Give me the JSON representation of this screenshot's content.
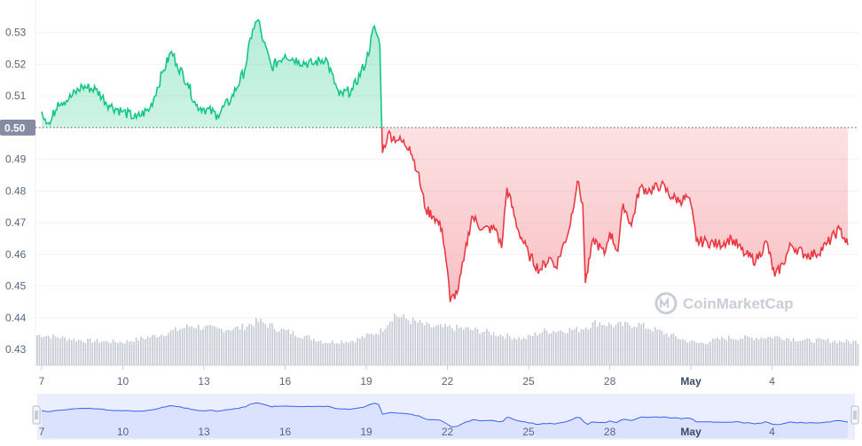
{
  "chart_data": {
    "type": "area",
    "baseline": 0.5,
    "baseline_label": "0.50",
    "ylim": [
      0.425,
      0.538
    ],
    "yticks": [
      "0.53",
      "0.52",
      "0.51",
      "0.50",
      "0.49",
      "0.48",
      "0.47",
      "0.46",
      "0.45",
      "0.44",
      "0.43"
    ],
    "xticks": [
      "7",
      "10",
      "13",
      "16",
      "19",
      "22",
      "25",
      "28",
      "May",
      "4"
    ],
    "x_day_range": [
      7,
      37
    ],
    "price_anchors": [
      [
        7.0,
        0.505
      ],
      [
        7.3,
        0.501
      ],
      [
        7.6,
        0.508
      ],
      [
        8.0,
        0.509
      ],
      [
        8.5,
        0.513
      ],
      [
        9.0,
        0.512
      ],
      [
        9.5,
        0.507
      ],
      [
        10.0,
        0.505
      ],
      [
        10.5,
        0.503
      ],
      [
        11.0,
        0.506
      ],
      [
        11.5,
        0.518
      ],
      [
        11.8,
        0.524
      ],
      [
        12.0,
        0.52
      ],
      [
        12.4,
        0.514
      ],
      [
        12.7,
        0.507
      ],
      [
        13.0,
        0.506
      ],
      [
        13.5,
        0.504
      ],
      [
        14.0,
        0.509
      ],
      [
        14.5,
        0.518
      ],
      [
        14.8,
        0.531
      ],
      [
        15.0,
        0.534
      ],
      [
        15.2,
        0.527
      ],
      [
        15.5,
        0.519
      ],
      [
        16.0,
        0.523
      ],
      [
        16.5,
        0.521
      ],
      [
        17.0,
        0.52
      ],
      [
        17.5,
        0.522
      ],
      [
        18.0,
        0.51
      ],
      [
        18.5,
        0.512
      ],
      [
        19.0,
        0.521
      ],
      [
        19.3,
        0.532
      ],
      [
        19.5,
        0.526
      ],
      [
        19.6,
        0.492
      ],
      [
        19.8,
        0.498
      ],
      [
        20.2,
        0.496
      ],
      [
        20.6,
        0.494
      ],
      [
        20.9,
        0.486
      ],
      [
        21.2,
        0.474
      ],
      [
        21.5,
        0.472
      ],
      [
        21.8,
        0.468
      ],
      [
        22.0,
        0.455
      ],
      [
        22.1,
        0.445
      ],
      [
        22.4,
        0.449
      ],
      [
        22.6,
        0.458
      ],
      [
        22.9,
        0.472
      ],
      [
        23.3,
        0.468
      ],
      [
        23.8,
        0.468
      ],
      [
        24.0,
        0.462
      ],
      [
        24.2,
        0.481
      ],
      [
        24.6,
        0.468
      ],
      [
        25.0,
        0.46
      ],
      [
        25.4,
        0.455
      ],
      [
        25.8,
        0.459
      ],
      [
        26.0,
        0.456
      ],
      [
        26.5,
        0.468
      ],
      [
        26.8,
        0.483
      ],
      [
        27.0,
        0.476
      ],
      [
        27.1,
        0.451
      ],
      [
        27.4,
        0.465
      ],
      [
        27.8,
        0.46
      ],
      [
        28.0,
        0.467
      ],
      [
        28.3,
        0.461
      ],
      [
        28.5,
        0.476
      ],
      [
        28.8,
        0.469
      ],
      [
        29.1,
        0.481
      ],
      [
        29.5,
        0.48
      ],
      [
        29.9,
        0.482
      ],
      [
        30.3,
        0.478
      ],
      [
        30.6,
        0.477
      ],
      [
        30.9,
        0.478
      ],
      [
        31.1,
        0.471
      ],
      [
        31.2,
        0.464
      ],
      [
        31.6,
        0.464
      ],
      [
        32.0,
        0.463
      ],
      [
        32.5,
        0.465
      ],
      [
        33.0,
        0.46
      ],
      [
        33.4,
        0.458
      ],
      [
        33.8,
        0.464
      ],
      [
        34.1,
        0.453
      ],
      [
        34.4,
        0.457
      ],
      [
        34.7,
        0.463
      ],
      [
        35.2,
        0.46
      ],
      [
        35.6,
        0.46
      ],
      [
        36.0,
        0.463
      ],
      [
        36.5,
        0.468
      ],
      [
        36.8,
        0.463
      ]
    ],
    "volume_bands": [
      [
        7.0,
        0.55
      ],
      [
        8.5,
        0.45
      ],
      [
        10.0,
        0.42
      ],
      [
        11.3,
        0.55
      ],
      [
        12.5,
        0.72
      ],
      [
        13.5,
        0.65
      ],
      [
        14.3,
        0.68
      ],
      [
        15.0,
        0.8
      ],
      [
        15.8,
        0.65
      ],
      [
        16.5,
        0.55
      ],
      [
        17.5,
        0.42
      ],
      [
        18.5,
        0.45
      ],
      [
        19.5,
        0.62
      ],
      [
        20.0,
        0.92
      ],
      [
        20.6,
        0.82
      ],
      [
        21.3,
        0.7
      ],
      [
        22.3,
        0.68
      ],
      [
        23.3,
        0.62
      ],
      [
        24.0,
        0.55
      ],
      [
        24.8,
        0.48
      ],
      [
        25.5,
        0.62
      ],
      [
        26.8,
        0.65
      ],
      [
        27.5,
        0.78
      ],
      [
        28.2,
        0.72
      ],
      [
        29.0,
        0.75
      ],
      [
        29.8,
        0.62
      ],
      [
        30.8,
        0.45
      ],
      [
        31.3,
        0.4
      ],
      [
        32.3,
        0.5
      ],
      [
        33.2,
        0.5
      ],
      [
        34.2,
        0.52
      ],
      [
        35.2,
        0.45
      ],
      [
        36.0,
        0.45
      ],
      [
        36.8,
        0.43
      ]
    ],
    "colors": {
      "above": "#16c784",
      "below": "#ea3943",
      "volume": "#c6cbd5",
      "navigator_line": "#3861fb",
      "navigator_fill": "#ebeefe"
    },
    "watermark": "CoinMarketCap"
  }
}
